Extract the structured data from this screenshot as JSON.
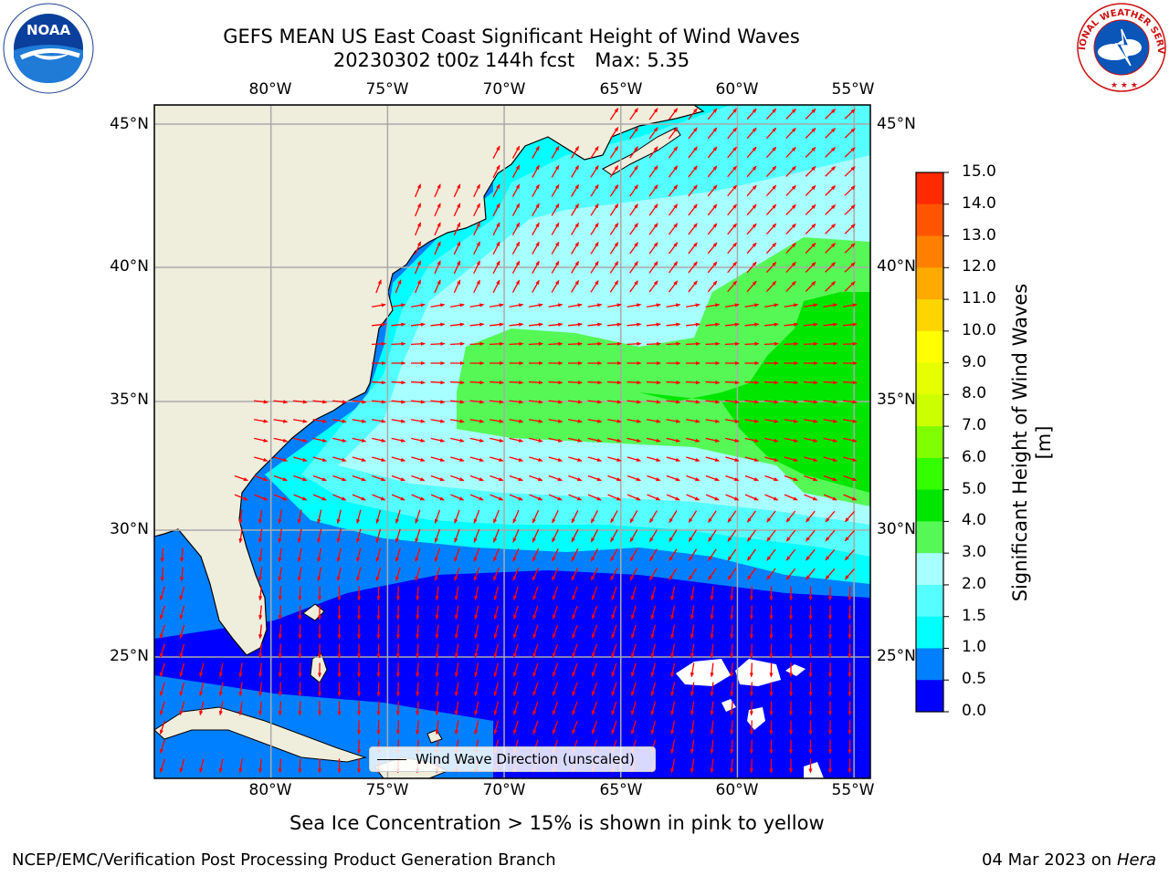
{
  "title": {
    "line1": "GEFS MEAN US East Coast Significant Height of Wind Waves",
    "date_fcst": "20230302 t00z 144h fcst",
    "max": "Max: 5.35"
  },
  "map": {
    "lon_labels": [
      "80°W",
      "75°W",
      "70°W",
      "65°W",
      "60°W",
      "55°W"
    ],
    "lat_labels": [
      "45°N",
      "40°N",
      "35°N",
      "30°N",
      "25°N"
    ],
    "lon_range": [
      -85,
      -54.3
    ],
    "lat_range": [
      20,
      46
    ],
    "field": "Significant Height of Wind Waves",
    "max_value": 5.35,
    "vectors": "Wind Wave Direction (unscaled)"
  },
  "legend": {
    "label": "Wind Wave Direction (unscaled)"
  },
  "colorbar": {
    "label": "Significant Height of Wind Waves [m]",
    "ticks": [
      "15.0",
      "14.0",
      "13.0",
      "12.0",
      "11.0",
      "10.0",
      "9.0",
      "8.0",
      "7.0",
      "6.0",
      "5.0",
      "4.0",
      "3.0",
      "2.0",
      "1.5",
      "1.0",
      "0.5",
      "0.0"
    ],
    "colors": [
      "#ff0000",
      "#ff2a00",
      "#ff5500",
      "#ff8000",
      "#ffaa00",
      "#ffd500",
      "#ffff00",
      "#e5ff00",
      "#ccff00",
      "#80ff00",
      "#33ff00",
      "#00e600",
      "#55f855",
      "#a8ffff",
      "#55ffff",
      "#00ffff",
      "#0080ff",
      "#0000ff"
    ]
  },
  "logos": {
    "left": "NOAA",
    "right": "NATIONAL WEATHER SERVICE"
  },
  "sea_ice_note": "Sea Ice Concentration > 15% is shown in pink to yellow",
  "footer": {
    "left": "NCEP/EMC/Verification Post Processing Product Generation Branch",
    "date": "04 Mar 2023 on",
    "machine": "Hera"
  }
}
